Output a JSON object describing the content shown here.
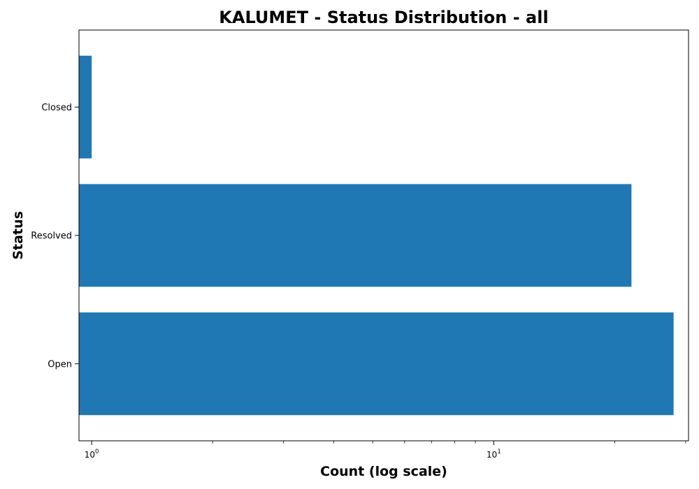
{
  "chart_data": {
    "type": "bar",
    "orientation": "horizontal",
    "title": "KALUMET - Status Distribution - all",
    "xlabel": "Count (log scale)",
    "ylabel": "Status",
    "x_scale": "log",
    "xlim": [
      0.93,
      30.5
    ],
    "categories": [
      "Closed",
      "Resolved",
      "Open"
    ],
    "values": [
      1,
      22,
      28
    ],
    "bar_color": "#1f77b4",
    "grid": false,
    "legend": "none",
    "x_ticks": [
      {
        "base": "10",
        "exponent": "0",
        "value": 1
      },
      {
        "base": "10",
        "exponent": "1",
        "value": 10
      }
    ]
  }
}
